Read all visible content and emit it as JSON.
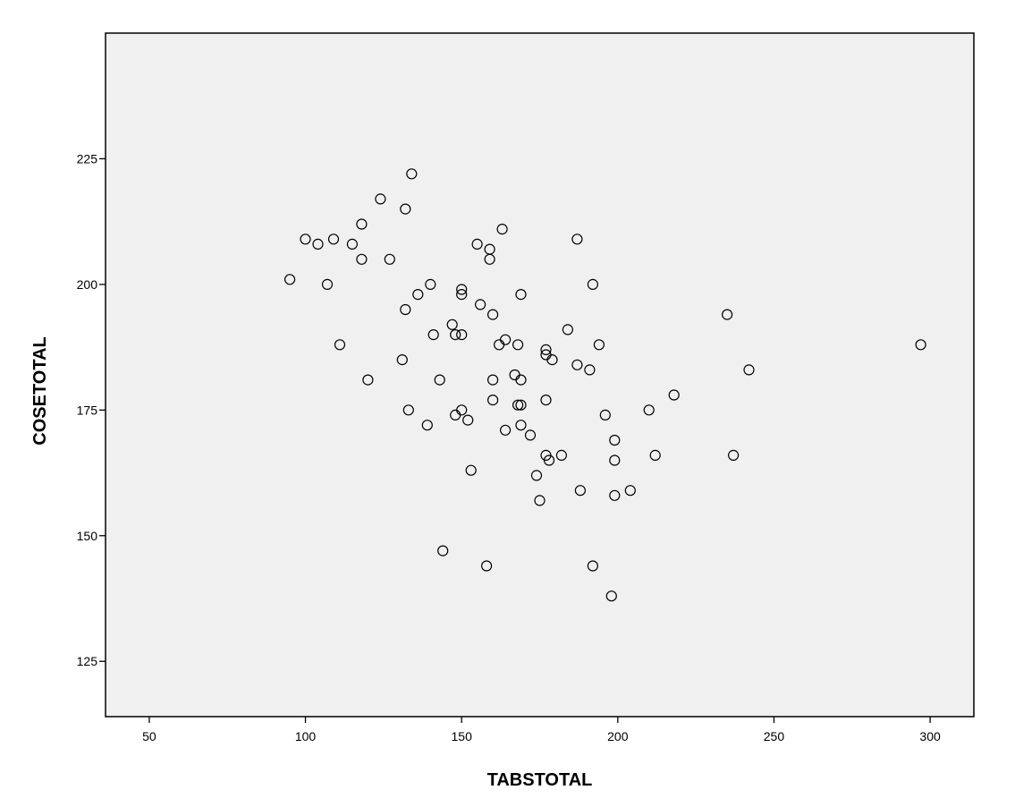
{
  "chart_data": {
    "type": "scatter",
    "title": "",
    "xlabel": "TABSTOTAL",
    "ylabel": "COSETOTAL",
    "xlim": [
      36,
      314
    ],
    "ylim": [
      114,
      250
    ],
    "xticks": [
      50,
      100,
      150,
      200,
      250,
      300
    ],
    "yticks": [
      125,
      150,
      175,
      200,
      225
    ],
    "grid": false,
    "colors": {
      "plot_background": "#f0f0f0",
      "marker": "#000000",
      "frame": "#000000"
    },
    "marker": "open-circle",
    "points": [
      [
        95,
        201
      ],
      [
        100,
        209
      ],
      [
        104,
        208
      ],
      [
        107,
        200
      ],
      [
        109,
        209
      ],
      [
        111,
        188
      ],
      [
        115,
        208
      ],
      [
        118,
        212
      ],
      [
        118,
        205
      ],
      [
        120,
        181
      ],
      [
        124,
        217
      ],
      [
        127,
        205
      ],
      [
        131,
        185
      ],
      [
        132,
        215
      ],
      [
        132,
        195
      ],
      [
        133,
        175
      ],
      [
        134,
        222
      ],
      [
        136,
        198
      ],
      [
        139,
        172
      ],
      [
        140,
        200
      ],
      [
        141,
        190
      ],
      [
        143,
        181
      ],
      [
        144,
        147
      ],
      [
        147,
        192
      ],
      [
        148,
        190
      ],
      [
        148,
        174
      ],
      [
        150,
        199
      ],
      [
        150,
        198
      ],
      [
        150,
        190
      ],
      [
        150,
        175
      ],
      [
        152,
        173
      ],
      [
        153,
        163
      ],
      [
        155,
        208
      ],
      [
        156,
        196
      ],
      [
        158,
        144
      ],
      [
        159,
        207
      ],
      [
        159,
        205
      ],
      [
        160,
        194
      ],
      [
        160,
        181
      ],
      [
        160,
        177
      ],
      [
        162,
        188
      ],
      [
        163,
        211
      ],
      [
        164,
        189
      ],
      [
        164,
        171
      ],
      [
        167,
        182
      ],
      [
        168,
        188
      ],
      [
        168,
        176
      ],
      [
        169,
        198
      ],
      [
        169,
        181
      ],
      [
        169,
        176
      ],
      [
        169,
        172
      ],
      [
        172,
        170
      ],
      [
        174,
        162
      ],
      [
        175,
        157
      ],
      [
        177,
        187
      ],
      [
        177,
        186
      ],
      [
        177,
        177
      ],
      [
        177,
        166
      ],
      [
        178,
        165
      ],
      [
        179,
        185
      ],
      [
        182,
        166
      ],
      [
        184,
        191
      ],
      [
        187,
        209
      ],
      [
        187,
        184
      ],
      [
        188,
        159
      ],
      [
        191,
        183
      ],
      [
        192,
        200
      ],
      [
        192,
        144
      ],
      [
        194,
        188
      ],
      [
        196,
        174
      ],
      [
        198,
        138
      ],
      [
        199,
        169
      ],
      [
        199,
        165
      ],
      [
        199,
        158
      ],
      [
        204,
        159
      ],
      [
        210,
        175
      ],
      [
        212,
        166
      ],
      [
        218,
        178
      ],
      [
        235,
        194
      ],
      [
        237,
        166
      ],
      [
        242,
        183
      ],
      [
        297,
        188
      ]
    ]
  }
}
